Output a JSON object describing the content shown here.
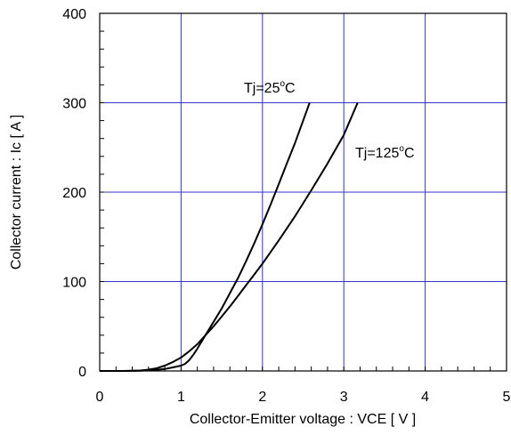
{
  "chart_data": {
    "type": "line",
    "xlabel": "Collector-Emitter voltage : VCE [ V ]",
    "ylabel": "Collector current : Ic [ A ]",
    "xlim": [
      0,
      5
    ],
    "ylim": [
      0,
      400
    ],
    "x_ticks": [
      "0",
      "1",
      "2",
      "3",
      "4",
      "5"
    ],
    "y_ticks": [
      "0",
      "100",
      "200",
      "300",
      "400"
    ],
    "grid": true,
    "grid_color": "#3333cc",
    "line_color": "#000000",
    "series": [
      {
        "name": "Tj=25°C",
        "label_parts": [
          "Tj=25",
          "o",
          "C"
        ],
        "points": [
          [
            0.0,
            0
          ],
          [
            0.3,
            0
          ],
          [
            0.5,
            0.3
          ],
          [
            0.7,
            1.2
          ],
          [
            0.8,
            2.2
          ],
          [
            0.9,
            4
          ],
          [
            1.0,
            6
          ],
          [
            1.05,
            8
          ],
          [
            1.1,
            12
          ],
          [
            1.15,
            18
          ],
          [
            1.2,
            25
          ],
          [
            1.3,
            40
          ],
          [
            1.4,
            55
          ],
          [
            1.5,
            70
          ],
          [
            1.6,
            87
          ],
          [
            1.7,
            104
          ],
          [
            1.8,
            123
          ],
          [
            1.9,
            143
          ],
          [
            2.0,
            164
          ],
          [
            2.1,
            186
          ],
          [
            2.2,
            209
          ],
          [
            2.3,
            232
          ],
          [
            2.4,
            255
          ],
          [
            2.5,
            280
          ],
          [
            2.58,
            300
          ]
        ]
      },
      {
        "name": "Tj=125°C",
        "label_parts": [
          "Tj=125",
          "o",
          "C"
        ],
        "points": [
          [
            0.0,
            0
          ],
          [
            0.3,
            0
          ],
          [
            0.5,
            0.5
          ],
          [
            0.6,
            1.5
          ],
          [
            0.7,
            3
          ],
          [
            0.8,
            6
          ],
          [
            0.9,
            10
          ],
          [
            1.0,
            15
          ],
          [
            1.1,
            22
          ],
          [
            1.2,
            30
          ],
          [
            1.3,
            40
          ],
          [
            1.4,
            50
          ],
          [
            1.5,
            61
          ],
          [
            1.6,
            72
          ],
          [
            1.7,
            84
          ],
          [
            1.8,
            96
          ],
          [
            1.9,
            108
          ],
          [
            2.0,
            120
          ],
          [
            2.2,
            146
          ],
          [
            2.4,
            173
          ],
          [
            2.6,
            202
          ],
          [
            2.8,
            232
          ],
          [
            3.0,
            264
          ],
          [
            3.17,
            300
          ]
        ]
      }
    ]
  }
}
